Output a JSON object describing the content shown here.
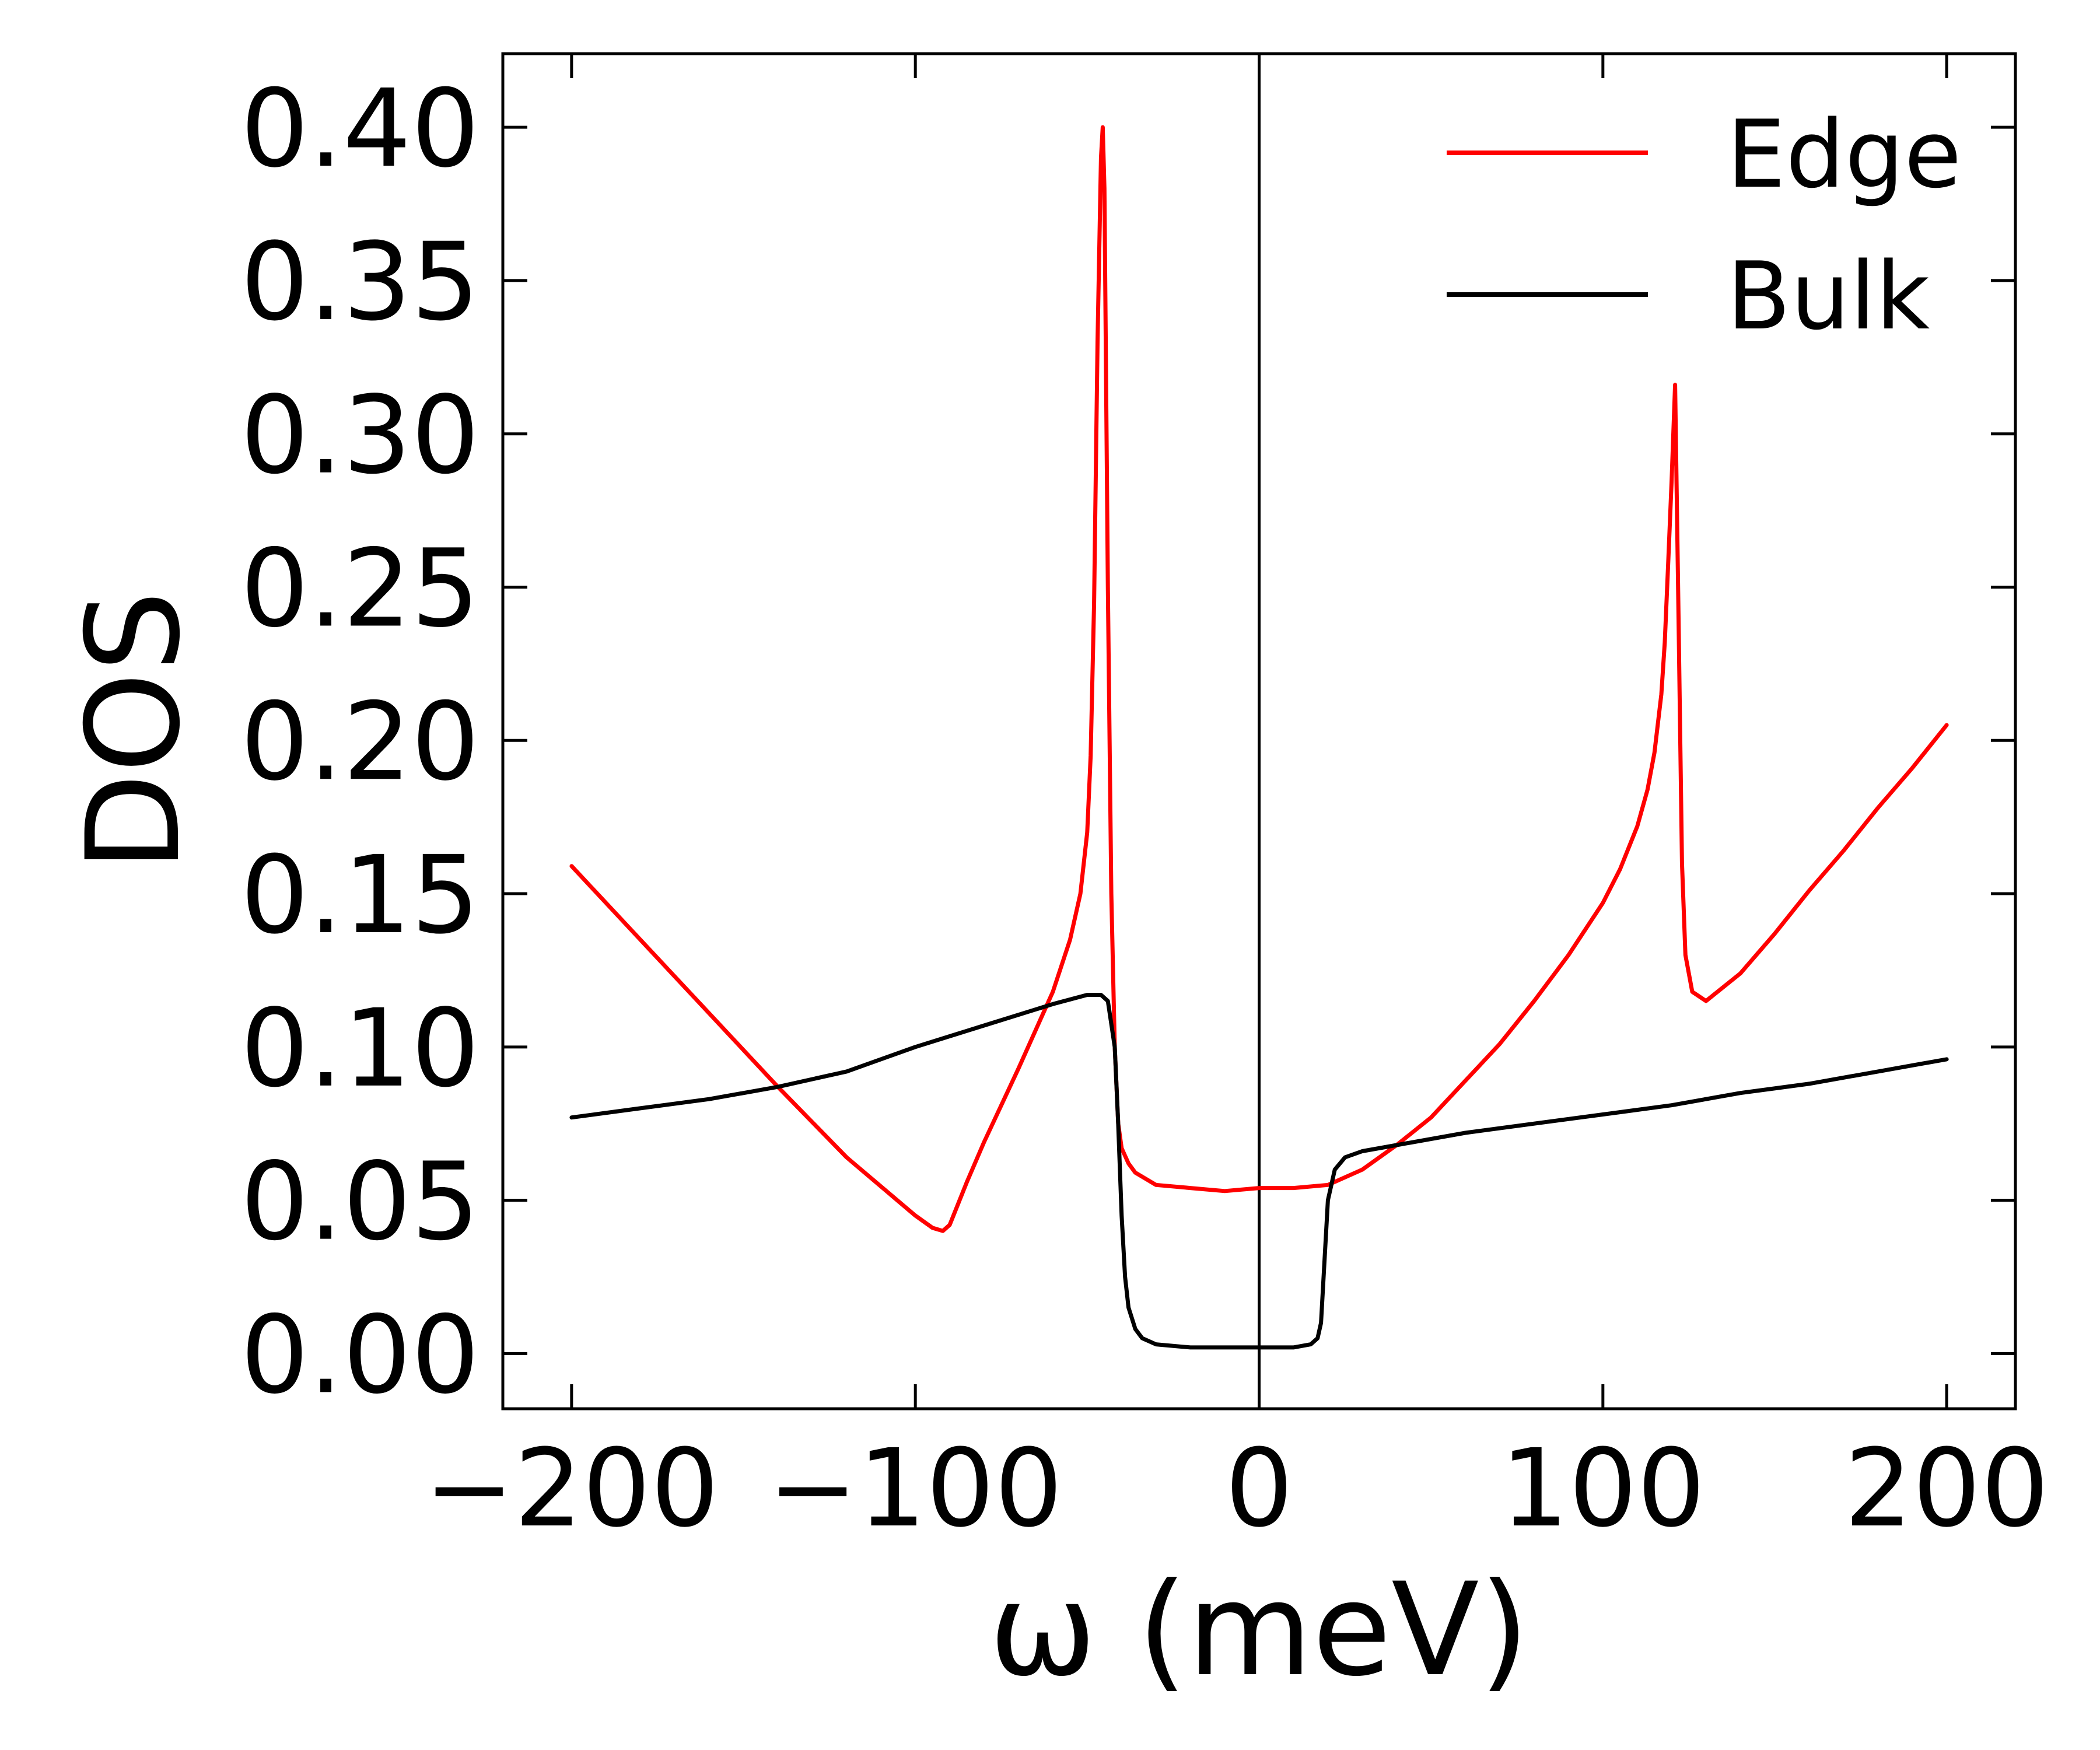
{
  "chart_data": {
    "type": "line",
    "title": "",
    "xlabel": "ω (meV)",
    "ylabel": "DOS",
    "xlim": [
      -220,
      220
    ],
    "ylim": [
      -0.018,
      0.424
    ],
    "xticks": [
      -200,
      -100,
      0,
      100,
      200
    ],
    "xtick_labels": [
      "−200",
      "−100",
      "0",
      "100",
      "200"
    ],
    "yticks": [
      0.0,
      0.05,
      0.1,
      0.15,
      0.2,
      0.25,
      0.3,
      0.35,
      0.4
    ],
    "ytick_labels": [
      "0.00",
      "0.05",
      "0.10",
      "0.15",
      "0.20",
      "0.25",
      "0.30",
      "0.35",
      "0.40"
    ],
    "vline_x": 0,
    "grid": false,
    "legend_position": "top-right",
    "series": [
      {
        "name": "Edge",
        "color": "#ff0000",
        "x": [
          -200,
          -180,
          -160,
          -140,
          -120,
          -100,
          -95,
          -92,
          -90,
          -85,
          -80,
          -70,
          -60,
          -55,
          -52,
          -50,
          -49,
          -48,
          -47,
          -46,
          -45.5,
          -45,
          -44,
          -43,
          -42,
          -41,
          -40,
          -38,
          -36,
          -33,
          -30,
          -20,
          -10,
          0,
          10,
          20,
          30,
          40,
          50,
          60,
          70,
          80,
          90,
          100,
          105,
          110,
          113,
          115,
          117,
          118,
          119,
          120,
          121,
          122,
          123,
          124,
          126,
          130,
          140,
          150,
          160,
          170,
          180,
          190,
          200
        ],
        "y": [
          0.159,
          0.135,
          0.111,
          0.087,
          0.064,
          0.045,
          0.041,
          0.04,
          0.042,
          0.056,
          0.069,
          0.093,
          0.118,
          0.135,
          0.15,
          0.17,
          0.195,
          0.245,
          0.33,
          0.39,
          0.4,
          0.38,
          0.25,
          0.15,
          0.1,
          0.075,
          0.067,
          0.062,
          0.059,
          0.057,
          0.055,
          0.054,
          0.053,
          0.054,
          0.054,
          0.055,
          0.06,
          0.068,
          0.077,
          0.089,
          0.101,
          0.115,
          0.13,
          0.147,
          0.158,
          0.172,
          0.184,
          0.196,
          0.215,
          0.232,
          0.258,
          0.285,
          0.316,
          0.24,
          0.16,
          0.13,
          0.118,
          0.115,
          0.124,
          0.137,
          0.151,
          0.164,
          0.178,
          0.191,
          0.205
        ]
      },
      {
        "name": "Bulk",
        "color": "#000000",
        "x": [
          -200,
          -180,
          -160,
          -140,
          -120,
          -100,
          -80,
          -60,
          -50,
          -46,
          -44,
          -42,
          -41,
          -40,
          -39,
          -38,
          -36,
          -34,
          -30,
          -20,
          -10,
          0,
          10,
          15,
          17,
          18,
          19,
          20,
          22,
          25,
          30,
          40,
          60,
          80,
          100,
          120,
          140,
          160,
          180,
          200
        ],
        "y": [
          0.077,
          0.08,
          0.083,
          0.087,
          0.092,
          0.1,
          0.107,
          0.114,
          0.117,
          0.117,
          0.115,
          0.1,
          0.075,
          0.045,
          0.025,
          0.015,
          0.008,
          0.005,
          0.003,
          0.002,
          0.002,
          0.002,
          0.002,
          0.003,
          0.005,
          0.01,
          0.03,
          0.05,
          0.06,
          0.064,
          0.066,
          0.068,
          0.072,
          0.075,
          0.078,
          0.081,
          0.085,
          0.088,
          0.092,
          0.096
        ]
      }
    ]
  }
}
